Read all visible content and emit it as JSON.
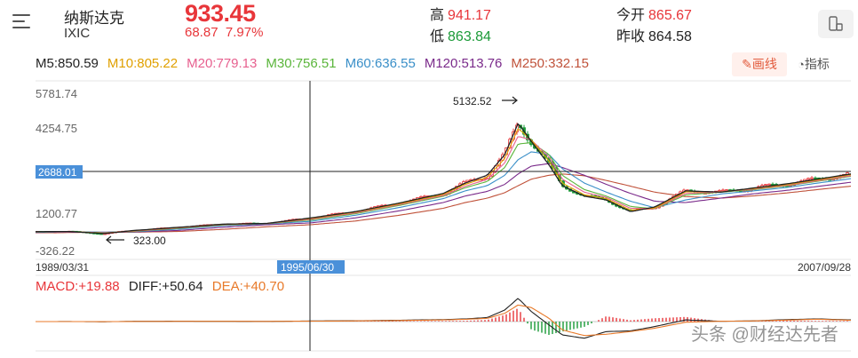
{
  "header": {
    "name": "纳斯达克",
    "code": "IXIC",
    "price": "933.45",
    "change": "68.87",
    "change_pct": "7.97%",
    "high_label": "高",
    "high": "941.17",
    "low_label": "低",
    "low": "863.84",
    "open_label": "今开",
    "open": "865.67",
    "prev_close_label": "昨收",
    "prev_close": "864.58"
  },
  "ma_legend": [
    {
      "label": "M5:850.59",
      "color": "#222222"
    },
    {
      "label": "M10:805.22",
      "color": "#e0a000"
    },
    {
      "label": "M20:779.13",
      "color": "#e7608f"
    },
    {
      "label": "M30:756.51",
      "color": "#5ab53a"
    },
    {
      "label": "M60:636.55",
      "color": "#3a8fc8"
    },
    {
      "label": "M120:513.76",
      "color": "#7a2a8a"
    },
    {
      "label": "M250:332.15",
      "color": "#c0523a"
    }
  ],
  "buttons": {
    "draw": "画线",
    "indicator": "指标"
  },
  "price_axis": {
    "ticks": [
      "5781.74",
      "4254.75",
      "1200.77",
      "-326.22"
    ],
    "crosshair_value": "2688.01"
  },
  "annotations": {
    "peak": "5132.52",
    "trough": "323.00"
  },
  "dates": {
    "start": "1989/03/31",
    "crosshair": "1995/06/30",
    "end": "2007/09/28"
  },
  "macd": {
    "macd_label": "MACD:+19.88",
    "diff_label": "DIFF:+50.64",
    "dea_label": "DEA:+40.70"
  },
  "watermark": "头条 @财经达先者",
  "colors": {
    "up": "#e8363a",
    "down": "#1a9a37",
    "crosshair_tag": "#4a90d9"
  },
  "chart_data": {
    "type": "line",
    "title": "",
    "x_range": [
      "1989/03/31",
      "2007/09/28"
    ],
    "ylim": [
      -326.22,
      5781.74
    ],
    "y_ticks": [
      5781.74,
      4254.75,
      1200.77,
      -326.22
    ],
    "crosshair": {
      "x": "1995/06/30",
      "y": 2688.01
    },
    "x": [
      1989.25,
      1990.0,
      1990.8,
      1991.5,
      1992.5,
      1993.5,
      1994.5,
      1995.5,
      1996.5,
      1997.5,
      1998.5,
      1999.0,
      1999.5,
      1999.9,
      2000.2,
      2000.5,
      2000.9,
      2001.2,
      2001.7,
      2002.2,
      2002.75,
      2003.3,
      2004.0,
      2004.8,
      2005.5,
      2006.3,
      2007.0,
      2007.75
    ],
    "series": [
      {
        "name": "M5",
        "values": [
          430,
          440,
          360,
          480,
          600,
          720,
          750,
          960,
          1200,
          1530,
          1900,
          2300,
          2600,
          3400,
          4600,
          3900,
          3000,
          2200,
          1800,
          1650,
          1200,
          1380,
          2000,
          1950,
          2100,
          2270,
          2450,
          2650
        ]
      },
      {
        "name": "M10",
        "values": [
          425,
          438,
          370,
          470,
          590,
          710,
          748,
          940,
          1180,
          1500,
          1860,
          2250,
          2520,
          3250,
          4400,
          3950,
          3150,
          2300,
          1850,
          1700,
          1260,
          1340,
          1960,
          1960,
          2080,
          2240,
          2420,
          2620
        ]
      },
      {
        "name": "M20",
        "values": [
          420,
          435,
          385,
          455,
          575,
          700,
          745,
          910,
          1150,
          1470,
          1820,
          2180,
          2440,
          3080,
          4100,
          3950,
          3300,
          2450,
          1950,
          1750,
          1330,
          1320,
          1900,
          1960,
          2060,
          2210,
          2390,
          2580
        ]
      },
      {
        "name": "M30",
        "values": [
          418,
          432,
          395,
          445,
          560,
          690,
          742,
          880,
          1120,
          1440,
          1790,
          2120,
          2360,
          2900,
          3800,
          3850,
          3400,
          2600,
          2050,
          1800,
          1400,
          1310,
          1840,
          1950,
          2040,
          2190,
          2370,
          2560
        ]
      },
      {
        "name": "M60",
        "values": [
          410,
          425,
          410,
          430,
          530,
          660,
          730,
          830,
          1060,
          1360,
          1700,
          2000,
          2200,
          2600,
          3200,
          3500,
          3400,
          2850,
          2300,
          1950,
          1600,
          1350,
          1650,
          1880,
          1990,
          2130,
          2300,
          2470
        ]
      },
      {
        "name": "M120",
        "values": [
          400,
          415,
          415,
          420,
          480,
          600,
          700,
          770,
          960,
          1230,
          1550,
          1800,
          1980,
          2250,
          2650,
          2950,
          3050,
          2900,
          2600,
          2250,
          1900,
          1600,
          1550,
          1720,
          1880,
          2020,
          2170,
          2330
        ]
      },
      {
        "name": "M250",
        "values": [
          390,
          400,
          408,
          412,
          440,
          520,
          620,
          700,
          840,
          1060,
          1330,
          1550,
          1720,
          1930,
          2200,
          2450,
          2600,
          2650,
          2580,
          2400,
          2180,
          1950,
          1780,
          1720,
          1800,
          1920,
          2050,
          2180
        ]
      }
    ],
    "macd": {
      "diff": [
        0,
        2,
        -5,
        8,
        10,
        8,
        4,
        18,
        25,
        40,
        60,
        80,
        120,
        350,
        700,
        300,
        -100,
        -400,
        -500,
        -300,
        -280,
        -150,
        50,
        10,
        20,
        60,
        80,
        50.64
      ],
      "dea": [
        0,
        1,
        -2,
        4,
        7,
        8,
        6,
        12,
        20,
        32,
        50,
        68,
        95,
        250,
        500,
        420,
        100,
        -250,
        -420,
        -380,
        -300,
        -200,
        -20,
        10,
        18,
        45,
        70,
        40.7
      ]
    }
  }
}
